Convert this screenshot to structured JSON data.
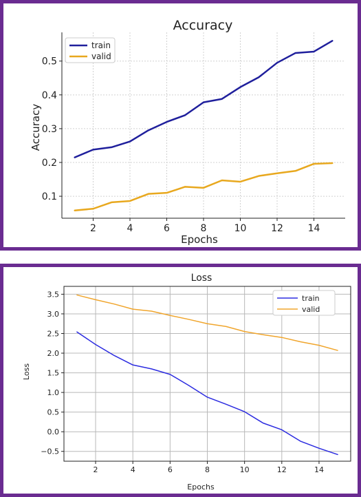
{
  "colors": {
    "frame": "#6a2c91",
    "train": "#1f1f9c",
    "valid": "#e8a81e"
  },
  "chart_data": [
    {
      "type": "line",
      "title": "Accuracy",
      "xlabel": "Epochs",
      "ylabel": "Accuracy",
      "x": [
        1,
        2,
        3,
        4,
        5,
        6,
        7,
        8,
        9,
        10,
        11,
        12,
        13,
        14,
        15
      ],
      "xticks": [
        "2",
        "4",
        "6",
        "8",
        "10",
        "12",
        "14"
      ],
      "yticks": [
        "0.1",
        "0.2",
        "0.3",
        "0.4",
        "0.5"
      ],
      "xlim": [
        0.3,
        15.7
      ],
      "ylim": [
        0.035,
        0.585
      ],
      "grid": true,
      "legend": "top-left",
      "series": [
        {
          "name": "train",
          "color": "#1f1f9c",
          "values": [
            0.215,
            0.238,
            0.245,
            0.262,
            0.295,
            0.32,
            0.34,
            0.378,
            0.388,
            0.423,
            0.452,
            0.495,
            0.524,
            0.528,
            0.56
          ]
        },
        {
          "name": "valid",
          "color": "#e8a81e",
          "values": [
            0.058,
            0.063,
            0.082,
            0.086,
            0.107,
            0.11,
            0.128,
            0.125,
            0.147,
            0.143,
            0.16,
            0.168,
            0.175,
            0.196,
            0.198
          ]
        }
      ]
    },
    {
      "type": "line",
      "title": "Loss",
      "xlabel": "Epochs",
      "ylabel": "Loss",
      "x": [
        1,
        2,
        3,
        4,
        5,
        6,
        7,
        8,
        9,
        10,
        11,
        12,
        13,
        14,
        15
      ],
      "xticks": [
        "2",
        "4",
        "6",
        "8",
        "10",
        "12",
        "14"
      ],
      "yticks": [
        "−0.5",
        "0.0",
        "0.5",
        "1.0",
        "1.5",
        "2.0",
        "2.5",
        "3.0",
        "3.5"
      ],
      "xlim": [
        0.3,
        15.7
      ],
      "ylim": [
        -0.75,
        3.7
      ],
      "grid": true,
      "legend": "top-right",
      "series": [
        {
          "name": "train",
          "color": "#2b2be0",
          "values": [
            2.54,
            2.22,
            1.94,
            1.7,
            1.6,
            1.46,
            1.18,
            0.88,
            0.7,
            0.51,
            0.22,
            0.05,
            -0.24,
            -0.42,
            -0.58
          ]
        },
        {
          "name": "valid",
          "color": "#f0a52c",
          "values": [
            3.48,
            3.36,
            3.25,
            3.12,
            3.07,
            2.96,
            2.86,
            2.75,
            2.68,
            2.55,
            2.47,
            2.4,
            2.29,
            2.2,
            2.07
          ]
        }
      ]
    }
  ]
}
